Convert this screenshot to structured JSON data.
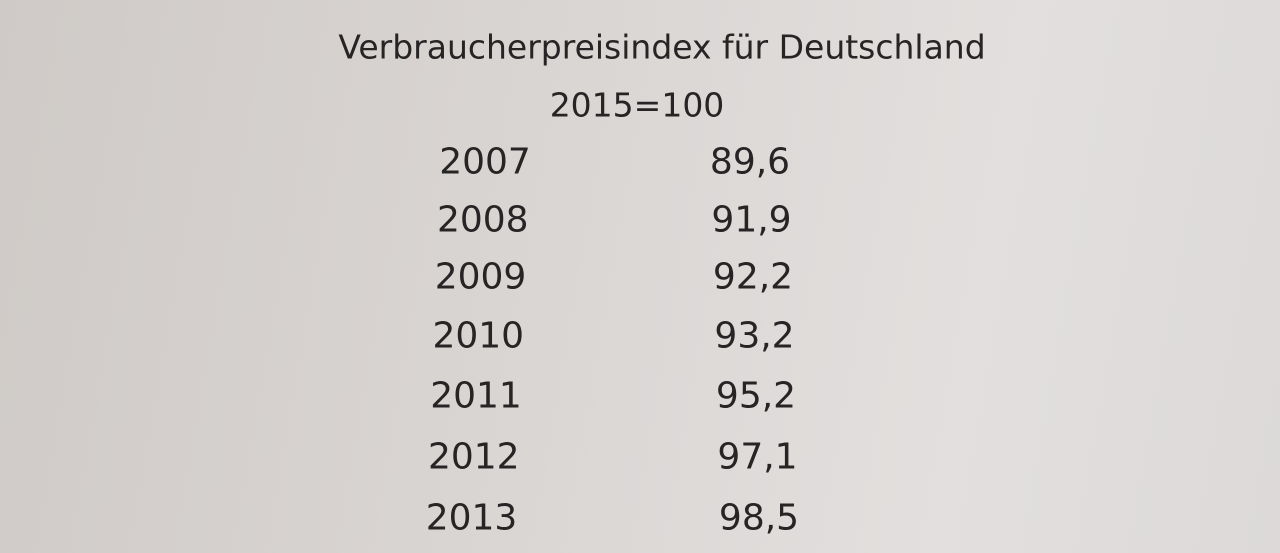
{
  "table": {
    "title": "Verbraucherpreisindex für Deutschland",
    "subtitle": "2015=100",
    "rows": [
      [
        "2007",
        "89,6"
      ],
      [
        "2008",
        "91,9"
      ],
      [
        "2009",
        "92,2"
      ],
      [
        "2010",
        "93,2"
      ],
      [
        "2011",
        "95,2"
      ],
      [
        "2012",
        "97,1"
      ],
      [
        "2013",
        "98,5"
      ]
    ]
  }
}
